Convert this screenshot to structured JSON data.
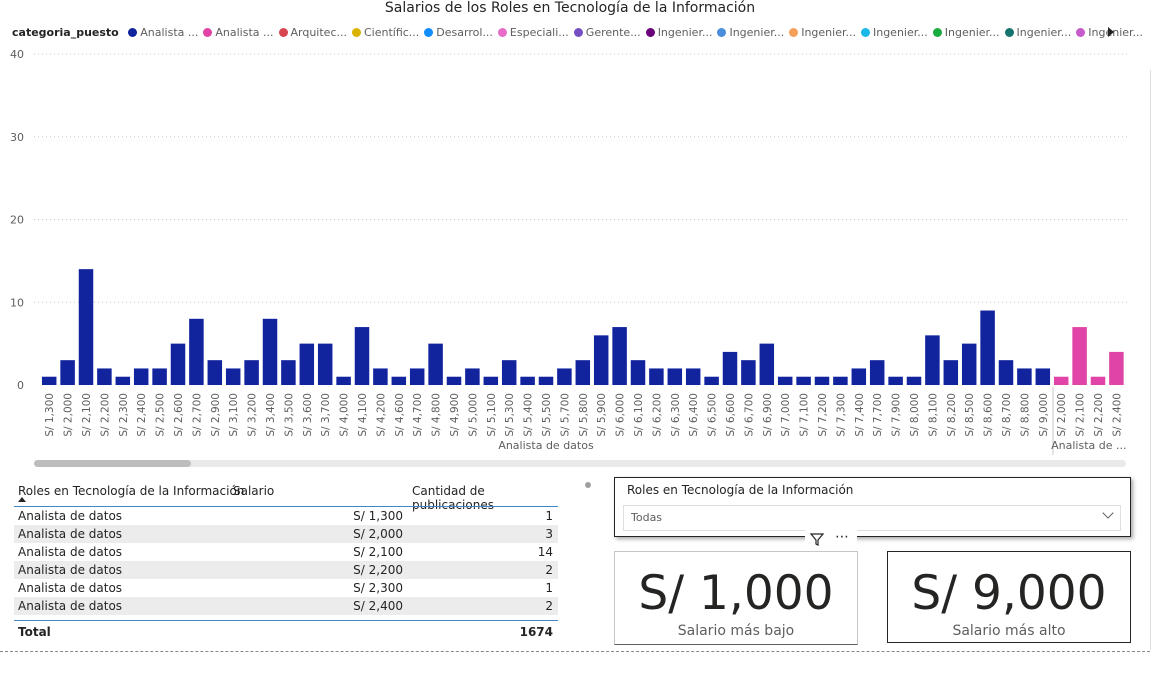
{
  "chart_data": {
    "type": "bar",
    "title": "Salarios de los Roles en Tecnología de la Información",
    "legend_title": "categoria_puesto",
    "legend_placement": "top",
    "legend": [
      {
        "label": "Analista ...",
        "color": "#12239e"
      },
      {
        "label": "Analista ...",
        "color": "#e044a7"
      },
      {
        "label": "Arquitec...",
        "color": "#d64550"
      },
      {
        "label": "Científic...",
        "color": "#d9b300"
      },
      {
        "label": "Desarrol...",
        "color": "#118dff"
      },
      {
        "label": "Especiali...",
        "color": "#e66cc8"
      },
      {
        "label": "Gerente...",
        "color": "#744ec2"
      },
      {
        "label": "Ingenier...",
        "color": "#6b007b"
      },
      {
        "label": "Ingenier...",
        "color": "#4a8ddc"
      },
      {
        "label": "Ingenier...",
        "color": "#f5a05a"
      },
      {
        "label": "Ingenier...",
        "color": "#1ab8e8"
      },
      {
        "label": "Ingenier...",
        "color": "#1aab40"
      },
      {
        "label": "Ingenier...",
        "color": "#15756e"
      },
      {
        "label": "Ingenier...",
        "color": "#c75acb"
      }
    ],
    "ylim": [
      0,
      40
    ],
    "yticks": [
      0,
      10,
      20,
      30,
      40
    ],
    "grid": true,
    "groups": [
      {
        "name": "Analista de datos",
        "color": "#12239e",
        "categories": [
          "S/ 1,300",
          "S/ 2,000",
          "S/ 2,100",
          "S/ 2,200",
          "S/ 2,300",
          "S/ 2,400",
          "S/ 2,500",
          "S/ 2,600",
          "S/ 2,700",
          "S/ 2,900",
          "S/ 3,100",
          "S/ 3,200",
          "S/ 3,400",
          "S/ 3,500",
          "S/ 3,600",
          "S/ 3,700",
          "S/ 4,000",
          "S/ 4,100",
          "S/ 4,200",
          "S/ 4,600",
          "S/ 4,700",
          "S/ 4,800",
          "S/ 4,900",
          "S/ 5,000",
          "S/ 5,100",
          "S/ 5,300",
          "S/ 5,400",
          "S/ 5,500",
          "S/ 5,700",
          "S/ 5,800",
          "S/ 5,900",
          "S/ 6,000",
          "S/ 6,100",
          "S/ 6,200",
          "S/ 6,300",
          "S/ 6,400",
          "S/ 6,500",
          "S/ 6,600",
          "S/ 6,700",
          "S/ 6,900",
          "S/ 7,000",
          "S/ 7,100",
          "S/ 7,200",
          "S/ 7,300",
          "S/ 7,400",
          "S/ 7,700",
          "S/ 7,900",
          "S/ 8,000",
          "S/ 8,100",
          "S/ 8,200",
          "S/ 8,500",
          "S/ 8,600",
          "S/ 8,700",
          "S/ 8,800",
          "S/ 9,000"
        ],
        "values": [
          1,
          3,
          14,
          2,
          1,
          2,
          2,
          5,
          8,
          3,
          2,
          3,
          8,
          3,
          5,
          5,
          1,
          7,
          2,
          1,
          2,
          5,
          1,
          2,
          1,
          3,
          1,
          1,
          2,
          3,
          6,
          7,
          3,
          2,
          2,
          2,
          1,
          4,
          3,
          5,
          1,
          1,
          1,
          1,
          2,
          3,
          1,
          1,
          6,
          3,
          5,
          9,
          3,
          2,
          2
        ]
      },
      {
        "name": "Analista de ...",
        "color": "#e044a7",
        "categories": [
          "S/ 2,000",
          "S/ 2,100",
          "S/ 2,200",
          "S/ 2,400"
        ],
        "values": [
          1,
          7,
          1,
          4
        ]
      }
    ]
  },
  "table": {
    "headers": [
      "Roles en Tecnología de la Información",
      "Salario",
      "Cantidad de publicaciones"
    ],
    "rows": [
      {
        "rol": "Analista de datos",
        "salario": "S/ 1,300",
        "cantidad": "1"
      },
      {
        "rol": "Analista de datos",
        "salario": "S/ 2,000",
        "cantidad": "3"
      },
      {
        "rol": "Analista de datos",
        "salario": "S/ 2,100",
        "cantidad": "14"
      },
      {
        "rol": "Analista de datos",
        "salario": "S/ 2,200",
        "cantidad": "2"
      },
      {
        "rol": "Analista de datos",
        "salario": "S/ 2,300",
        "cantidad": "1"
      },
      {
        "rol": "Analista de datos",
        "salario": "S/ 2,400",
        "cantidad": "2"
      }
    ],
    "total_label": "Total",
    "total_value": "1674"
  },
  "slicer": {
    "title": "Roles en Tecnología de la Información",
    "value": "Todas"
  },
  "cards": {
    "low": {
      "value": "S/ 1,000",
      "label": "Salario más bajo"
    },
    "high": {
      "value": "S/ 9,000",
      "label": "Salario más alto"
    }
  }
}
